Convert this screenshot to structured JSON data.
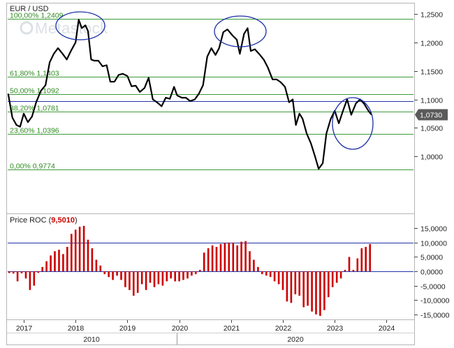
{
  "chart_data": [
    {
      "type": "line",
      "title": "EUR / USD",
      "watermark": "Metastock",
      "y_axis": {
        "ticks": [
          "1,2500",
          "1,2000",
          "1,1500",
          "1,1000",
          "1,0500",
          "1,0000"
        ],
        "ylim": [
          0.975,
          1.255
        ]
      },
      "x_axis": {
        "ticks": [
          "2017",
          "2018",
          "2019",
          "2020",
          "2021",
          "2022",
          "2023",
          "2024"
        ],
        "era_labels": [
          "2010",
          "2020"
        ]
      },
      "last_value_label": "1,0730",
      "fib_levels": [
        {
          "label": "100,00% 1,2409",
          "value": 1.2409
        },
        {
          "label": "61,80% 1,1403",
          "value": 1.1403
        },
        {
          "label": "50,00% 1,1092",
          "value": 1.1092
        },
        {
          "label": "38,20% 1,0781",
          "value": 1.0781
        },
        {
          "label": "23,60% 1,0396",
          "value": 1.0396
        },
        {
          "label": "0,00% 0,9774",
          "value": 0.9774
        }
      ],
      "blue_line_value": 1.097,
      "series": [
        {
          "values": [
            [
              2016.7,
              1.11
            ],
            [
              2016.78,
              1.068
            ],
            [
              2016.86,
              1.055
            ],
            [
              2016.93,
              1.052
            ],
            [
              2017.0,
              1.075
            ],
            [
              2017.08,
              1.06
            ],
            [
              2017.16,
              1.07
            ],
            [
              2017.24,
              1.095
            ],
            [
              2017.33,
              1.115
            ],
            [
              2017.42,
              1.125
            ],
            [
              2017.5,
              1.165
            ],
            [
              2017.58,
              1.18
            ],
            [
              2017.66,
              1.19
            ],
            [
              2017.75,
              1.18
            ],
            [
              2017.83,
              1.17
            ],
            [
              2017.91,
              1.185
            ],
            [
              2018.0,
              1.2
            ],
            [
              2018.06,
              1.24
            ],
            [
              2018.12,
              1.225
            ],
            [
              2018.19,
              1.23
            ],
            [
              2018.24,
              1.22
            ],
            [
              2018.3,
              1.17
            ],
            [
              2018.36,
              1.168
            ],
            [
              2018.44,
              1.168
            ],
            [
              2018.52,
              1.158
            ],
            [
              2018.6,
              1.16
            ],
            [
              2018.67,
              1.131
            ],
            [
              2018.75,
              1.131
            ],
            [
              2018.83,
              1.143
            ],
            [
              2018.91,
              1.145
            ],
            [
              2019.0,
              1.141
            ],
            [
              2019.08,
              1.123
            ],
            [
              2019.16,
              1.124
            ],
            [
              2019.24,
              1.113
            ],
            [
              2019.33,
              1.12
            ],
            [
              2019.41,
              1.138
            ],
            [
              2019.49,
              1.1
            ],
            [
              2019.57,
              1.095
            ],
            [
              2019.66,
              1.088
            ],
            [
              2019.74,
              1.103
            ],
            [
              2019.82,
              1.101
            ],
            [
              2019.9,
              1.122
            ],
            [
              2019.96,
              1.107
            ],
            [
              2020.05,
              1.103
            ],
            [
              2020.13,
              1.103
            ],
            [
              2020.21,
              1.097
            ],
            [
              2020.3,
              1.1
            ],
            [
              2020.38,
              1.11
            ],
            [
              2020.46,
              1.125
            ],
            [
              2020.54,
              1.175
            ],
            [
              2020.62,
              1.19
            ],
            [
              2020.7,
              1.178
            ],
            [
              2020.77,
              1.19
            ],
            [
              2020.85,
              1.218
            ],
            [
              2020.93,
              1.223
            ],
            [
              2021.03,
              1.212
            ],
            [
              2021.11,
              1.205
            ],
            [
              2021.17,
              1.18
            ],
            [
              2021.25,
              1.215
            ],
            [
              2021.32,
              1.225
            ],
            [
              2021.38,
              1.185
            ],
            [
              2021.46,
              1.188
            ],
            [
              2021.54,
              1.18
            ],
            [
              2021.63,
              1.17
            ],
            [
              2021.71,
              1.156
            ],
            [
              2021.8,
              1.135
            ],
            [
              2021.88,
              1.135
            ],
            [
              2021.96,
              1.13
            ],
            [
              2022.04,
              1.122
            ],
            [
              2022.12,
              1.095
            ],
            [
              2022.19,
              1.1
            ],
            [
              2022.25,
              1.055
            ],
            [
              2022.32,
              1.075
            ],
            [
              2022.38,
              1.066
            ],
            [
              2022.46,
              1.04
            ],
            [
              2022.54,
              1.023
            ],
            [
              2022.62,
              1.0
            ],
            [
              2022.69,
              0.978
            ],
            [
              2022.77,
              0.988
            ],
            [
              2022.84,
              1.04
            ],
            [
              2022.92,
              1.065
            ],
            [
              2023.0,
              1.08
            ],
            [
              2023.08,
              1.058
            ],
            [
              2023.16,
              1.08
            ],
            [
              2023.24,
              1.1
            ],
            [
              2023.32,
              1.073
            ],
            [
              2023.41,
              1.093
            ],
            [
              2023.49,
              1.1
            ],
            [
              2023.57,
              1.092
            ],
            [
              2023.65,
              1.08
            ],
            [
              2023.71,
              1.073
            ]
          ]
        }
      ]
    },
    {
      "type": "bar",
      "title": "Price ROC",
      "title_value": "9,5010",
      "y_axis": {
        "ticks": [
          "15,0000",
          "10,0000",
          "5,0000",
          "0,0000",
          "-5,0000",
          "-10,0000",
          "-15,0000"
        ],
        "ylim": [
          -16,
          16
        ]
      },
      "ref_line_value": 10,
      "values": [
        [
          2016.72,
          -0.6
        ],
        [
          2016.8,
          -0.8
        ],
        [
          2016.88,
          -3.5
        ],
        [
          2016.96,
          -0.7
        ],
        [
          2017.04,
          -2.5
        ],
        [
          2017.12,
          -6.5
        ],
        [
          2017.2,
          -5
        ],
        [
          2017.28,
          -0.5
        ],
        [
          2017.36,
          1.5
        ],
        [
          2017.44,
          3.5
        ],
        [
          2017.52,
          5.5
        ],
        [
          2017.6,
          7
        ],
        [
          2017.68,
          7.5
        ],
        [
          2017.76,
          6
        ],
        [
          2017.84,
          8.5
        ],
        [
          2017.92,
          13
        ],
        [
          2018.0,
          14.5
        ],
        [
          2018.08,
          15.5
        ],
        [
          2018.16,
          15.8
        ],
        [
          2018.24,
          11
        ],
        [
          2018.32,
          8
        ],
        [
          2018.4,
          4
        ],
        [
          2018.48,
          2
        ],
        [
          2018.56,
          -1
        ],
        [
          2018.64,
          -2
        ],
        [
          2018.72,
          -3
        ],
        [
          2018.8,
          -1.5
        ],
        [
          2018.88,
          -3
        ],
        [
          2018.96,
          -5.5
        ],
        [
          2019.04,
          -6.5
        ],
        [
          2019.12,
          -8.5
        ],
        [
          2019.2,
          -7.5
        ],
        [
          2019.28,
          -4.5
        ],
        [
          2019.36,
          -6.5
        ],
        [
          2019.44,
          -4
        ],
        [
          2019.52,
          -5.5
        ],
        [
          2019.6,
          -4.5
        ],
        [
          2019.68,
          -5
        ],
        [
          2019.76,
          -3.5
        ],
        [
          2019.84,
          -2.5
        ],
        [
          2019.92,
          -3.5
        ],
        [
          2020.0,
          -3.5
        ],
        [
          2020.08,
          -3
        ],
        [
          2020.16,
          -2.5
        ],
        [
          2020.24,
          -1.5
        ],
        [
          2020.32,
          -1
        ],
        [
          2020.4,
          0.5
        ],
        [
          2020.48,
          6.5
        ],
        [
          2020.56,
          8
        ],
        [
          2020.64,
          9
        ],
        [
          2020.72,
          8.5
        ],
        [
          2020.8,
          9.5
        ],
        [
          2020.88,
          9.8
        ],
        [
          2020.96,
          10
        ],
        [
          2021.04,
          10
        ],
        [
          2021.12,
          9
        ],
        [
          2021.2,
          10.3
        ],
        [
          2021.28,
          10.5
        ],
        [
          2021.36,
          7
        ],
        [
          2021.44,
          4
        ],
        [
          2021.52,
          1.5
        ],
        [
          2021.6,
          -1
        ],
        [
          2021.68,
          -1.5
        ],
        [
          2021.76,
          -2
        ],
        [
          2021.84,
          -3.5
        ],
        [
          2021.92,
          -4.5
        ],
        [
          2022.0,
          -6.5
        ],
        [
          2022.08,
          -10.5
        ],
        [
          2022.16,
          -11
        ],
        [
          2022.24,
          -8
        ],
        [
          2022.32,
          -8.5
        ],
        [
          2022.4,
          -12.5
        ],
        [
          2022.48,
          -12
        ],
        [
          2022.56,
          -14
        ],
        [
          2022.64,
          -15
        ],
        [
          2022.72,
          -15.5
        ],
        [
          2022.8,
          -13.5
        ],
        [
          2022.88,
          -9
        ],
        [
          2022.96,
          -5.5
        ],
        [
          2023.04,
          -4
        ],
        [
          2023.12,
          -2.5
        ],
        [
          2023.2,
          0.5
        ],
        [
          2023.28,
          5
        ],
        [
          2023.36,
          0.5
        ],
        [
          2023.44,
          4.5
        ],
        [
          2023.52,
          8
        ],
        [
          2023.6,
          8.5
        ],
        [
          2023.68,
          9.5
        ]
      ]
    }
  ]
}
